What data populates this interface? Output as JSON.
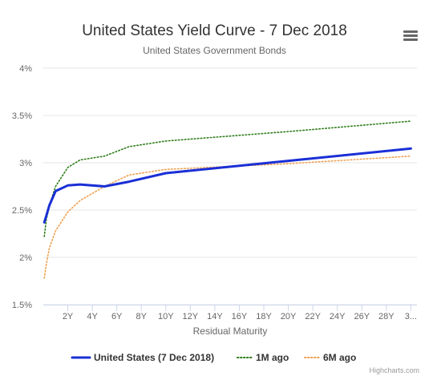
{
  "header": {
    "title": "United States Yield Curve - 7 Dec 2018",
    "subtitle": "United States Government Bonds",
    "menu_icon": "hamburger-menu-icon"
  },
  "footer": {
    "credits": "Highcharts.com"
  },
  "chart_data": {
    "type": "line",
    "title": "United States Yield Curve - 7 Dec 2018",
    "subtitle": "United States Government Bonds",
    "xlabel": "Residual Maturity",
    "ylabel": "",
    "xlim": [
      0,
      30.5
    ],
    "ylim": [
      1.5,
      4
    ],
    "grid": true,
    "legend_position": "bottom-center",
    "x_tick_values": [
      2,
      4,
      6,
      8,
      10,
      12,
      14,
      16,
      18,
      20,
      22,
      24,
      26,
      28,
      30
    ],
    "x_tick_labels": [
      "2Y",
      "4Y",
      "6Y",
      "8Y",
      "10Y",
      "12Y",
      "14Y",
      "16Y",
      "18Y",
      "20Y",
      "22Y",
      "24Y",
      "26Y",
      "28Y",
      "3..."
    ],
    "y_tick_values": [
      1.5,
      2,
      2.5,
      3,
      3.5,
      4
    ],
    "y_tick_labels": [
      "1.5%",
      "2%",
      "2.5%",
      "3%",
      "3.5%",
      "4%"
    ],
    "series": [
      {
        "name": "United States (7 Dec 2018)",
        "color": "#1a2fd6",
        "dash": "solid",
        "x": [
          0.08,
          0.25,
          0.5,
          1,
          2,
          3,
          5,
          7,
          10,
          20,
          30
        ],
        "y": [
          2.37,
          2.44,
          2.55,
          2.7,
          2.76,
          2.77,
          2.75,
          2.8,
          2.89,
          3.02,
          3.15
        ]
      },
      {
        "name": "1M ago",
        "color": "#2e7d1a",
        "dash": "dotted",
        "x": [
          0.08,
          0.25,
          0.5,
          1,
          2,
          3,
          5,
          7,
          10,
          20,
          30
        ],
        "y": [
          2.22,
          2.4,
          2.55,
          2.75,
          2.95,
          3.03,
          3.07,
          3.17,
          3.23,
          3.33,
          3.44
        ]
      },
      {
        "name": "6M ago",
        "color": "#f0a050",
        "dash": "dotted",
        "x": [
          0.08,
          0.25,
          0.5,
          1,
          2,
          3,
          5,
          7,
          10,
          20,
          30
        ],
        "y": [
          1.78,
          1.93,
          2.1,
          2.28,
          2.48,
          2.6,
          2.75,
          2.87,
          2.93,
          2.99,
          3.07
        ]
      }
    ]
  }
}
